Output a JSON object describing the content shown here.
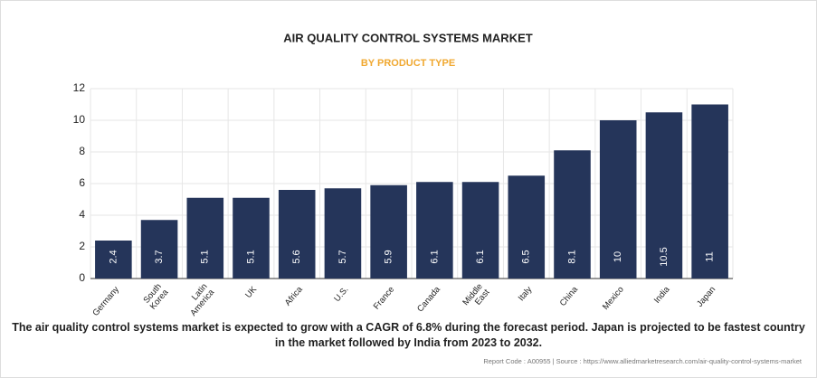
{
  "chart_data": {
    "type": "bar",
    "title": "AIR QUALITY CONTROL SYSTEMS MARKET",
    "subtitle": "BY PRODUCT TYPE",
    "categories": [
      "Germany",
      "South Korea",
      "Latin America",
      "UK",
      "Africa",
      "U.S.",
      "France",
      "Canada",
      "Middle East",
      "Italy",
      "China",
      "Mexico",
      "India",
      "Japan"
    ],
    "values": [
      2.4,
      3.7,
      5.1,
      5.1,
      5.6,
      5.7,
      5.9,
      6.1,
      6.1,
      6.5,
      8.1,
      10,
      10.5,
      11
    ],
    "color": "#25355a",
    "ylim": [
      0,
      12
    ],
    "yticks": [
      0,
      2,
      4,
      6,
      8,
      10,
      12
    ],
    "grid": true,
    "annotation": "The air quality control systems market is expected to grow with a CAGR of 6.8% during the forecast period. Japan is projected to be fastest country in the market followed by India from 2023 to 2032.",
    "source": "Report Code : A00955  |  Source : https://www.alliedmarketresearch.com/air-quality-control-systems-market"
  }
}
